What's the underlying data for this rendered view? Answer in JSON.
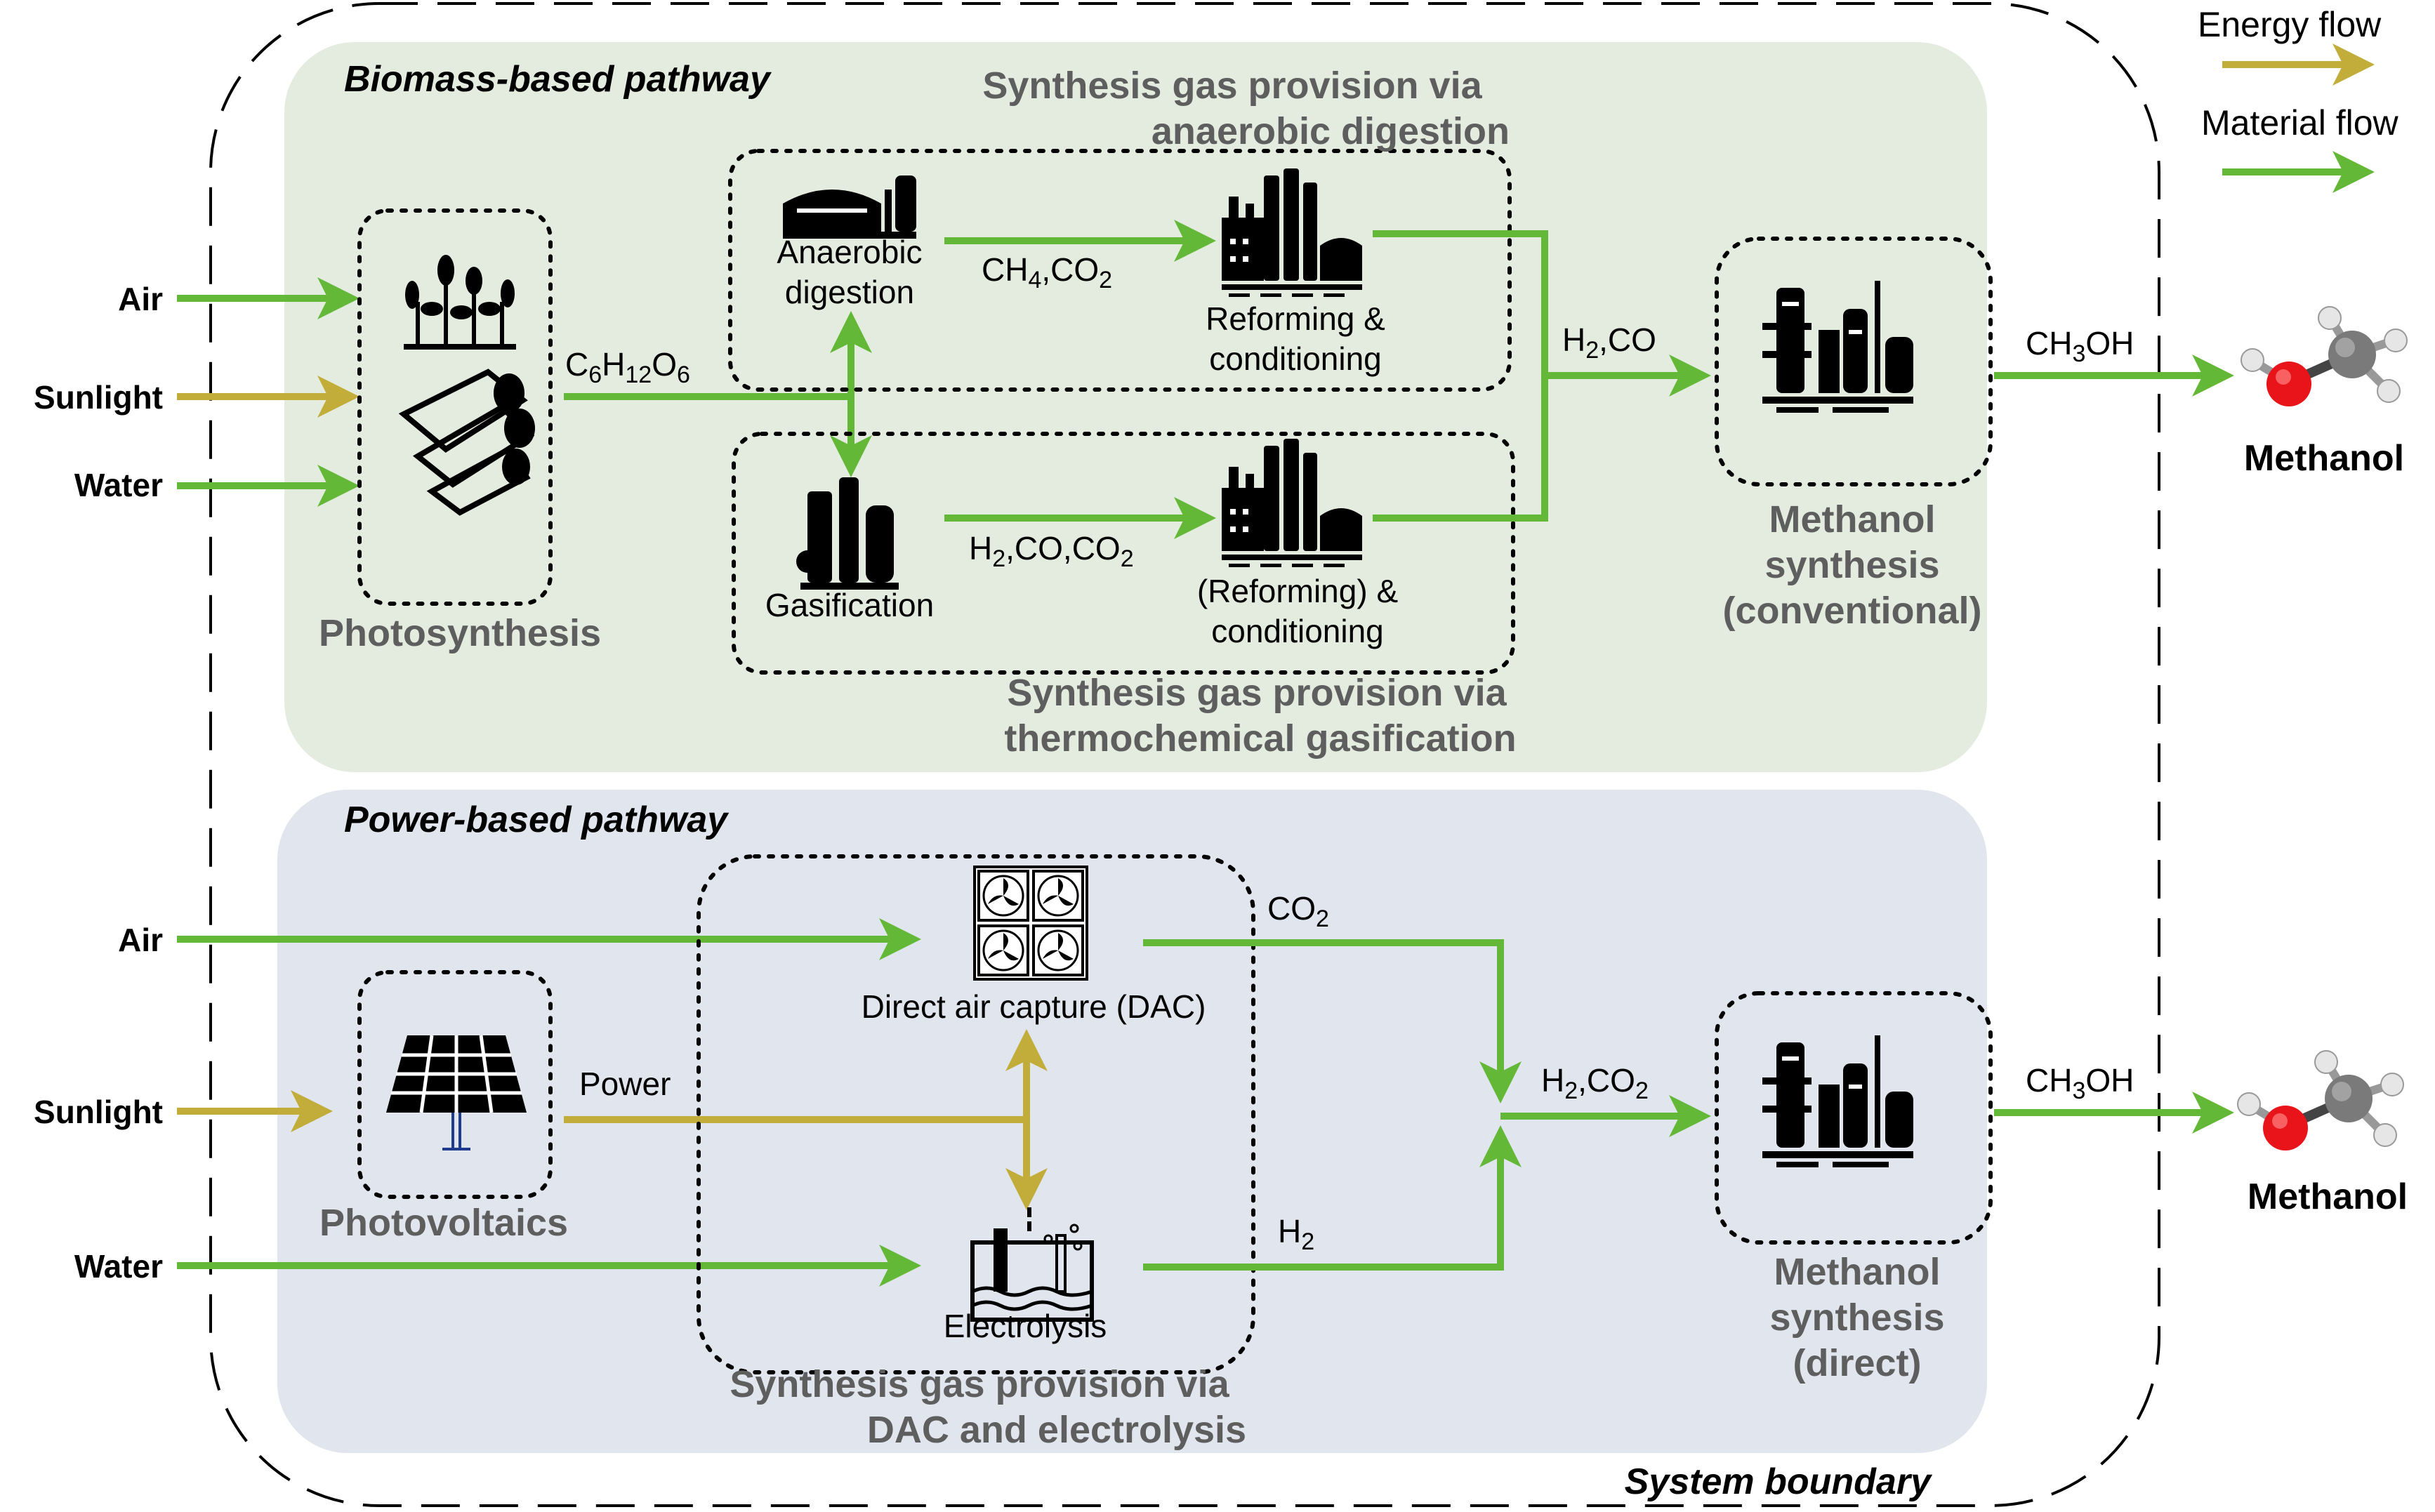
{
  "legend": {
    "energy_flow": "Energy flow",
    "material_flow": "Material flow"
  },
  "colors": {
    "energy": "#c2ad3a",
    "material": "#63b837",
    "biomass_bg": "#e3ecdf",
    "power_bg": "#e1e5ee",
    "section_text": "#5e5e5e"
  },
  "system_boundary": "System boundary",
  "biomass": {
    "title": "Biomass-based pathway",
    "inputs": {
      "air": "Air",
      "sunlight": "Sunlight",
      "water": "Water"
    },
    "photosynthesis": "Photosynthesis",
    "glucose": {
      "c": "C",
      "c_n": "6",
      "h": "H",
      "h_n": "12",
      "o": "O",
      "o_n": "6"
    },
    "ad_section": {
      "line1": "Synthesis gas provision via",
      "line2": "anaerobic digestion"
    },
    "ad_label": {
      "line1": "Anaerobic",
      "line2": "digestion"
    },
    "ch4co2": {
      "a": "CH",
      "a_n": "4",
      "b": ",CO",
      "b_n": "2"
    },
    "reforming": {
      "line1": "Reforming &",
      "line2": "conditioning"
    },
    "gasification": "Gasification",
    "h2coco2": {
      "a": "H",
      "a_n": "2",
      "b": ",CO,CO",
      "b_n": "2"
    },
    "reforming2": {
      "line1": "(Reforming) &",
      "line2": "conditioning"
    },
    "gas_section": {
      "line1": "Synthesis gas provision via",
      "line2": "thermochemical gasification"
    },
    "h2co": {
      "a": "H",
      "a_n": "2",
      "b": ",CO"
    },
    "synthesis": {
      "line1": "Methanol",
      "line2": "synthesis",
      "line3": "(conventional)"
    },
    "ch3oh": {
      "a": "CH",
      "a_n": "3",
      "b": "OH"
    },
    "product": "Methanol"
  },
  "power": {
    "title": "Power-based pathway",
    "inputs": {
      "air": "Air",
      "sunlight": "Sunlight",
      "water": "Water"
    },
    "photovoltaics": "Photovoltaics",
    "power_label": "Power",
    "dac": "Direct air capture (DAC)",
    "co2": {
      "a": "CO",
      "a_n": "2"
    },
    "h2": {
      "a": "H",
      "a_n": "2"
    },
    "electrolysis": "Electrolysis",
    "section": {
      "line1": "Synthesis gas provision via",
      "line2": "DAC and electrolysis"
    },
    "h2co2": {
      "a": "H",
      "a_n": "2",
      "b": ",CO",
      "b_n": "2"
    },
    "synthesis": {
      "line1": "Methanol",
      "line2": "synthesis",
      "line3": "(direct)"
    },
    "ch3oh": {
      "a": "CH",
      "a_n": "3",
      "b": "OH"
    },
    "product": "Methanol"
  }
}
